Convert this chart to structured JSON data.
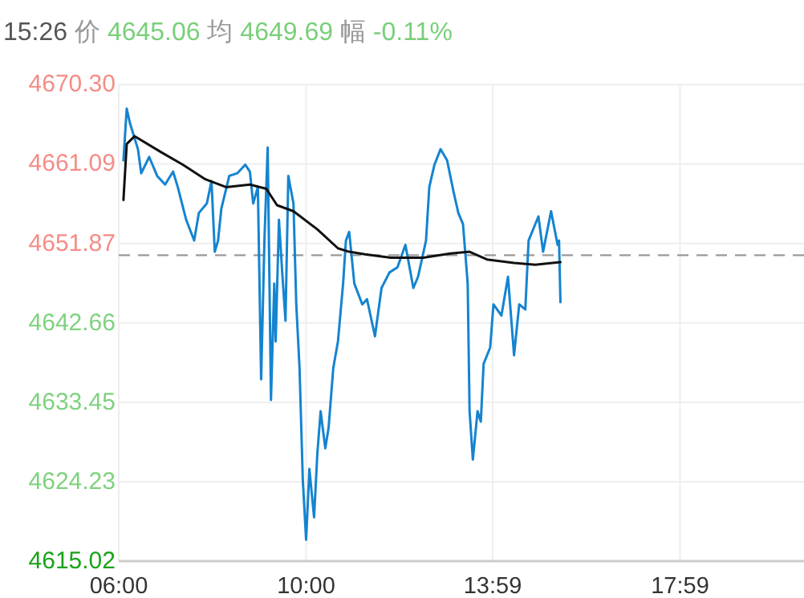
{
  "chart_data": {
    "type": "line",
    "title": "15:26 价 4645.06 均 4649.69 幅 -0.11%",
    "xlim": [
      6,
      20.63
    ],
    "xticks": [
      {
        "value": 6,
        "label": "06:00"
      },
      {
        "value": 10,
        "label": "10:00"
      },
      {
        "value": 13.983,
        "label": "13:59"
      },
      {
        "value": 17.983,
        "label": "17:59"
      }
    ],
    "ylim": [
      4615.02,
      4670.3
    ],
    "yticks": [
      {
        "value": 4670.3,
        "label": "4670.30"
      },
      {
        "value": 4661.09,
        "label": "4661.09"
      },
      {
        "value": 4651.87,
        "label": "4651.87"
      },
      {
        "value": 4642.66,
        "label": "4642.66"
      },
      {
        "value": 4633.45,
        "label": "4633.45"
      },
      {
        "value": 4624.23,
        "label": "4624.23"
      },
      {
        "value": 4615.02,
        "label": "4615.02"
      }
    ],
    "grid": true,
    "ref_lines": [
      {
        "axis": "y",
        "value": 4650.5,
        "color": "#999999",
        "line_style": "dashed"
      }
    ],
    "series": [
      {
        "color": "#1484d0",
        "x": [
          6.1,
          6.17,
          6.24,
          6.41,
          6.48,
          6.65,
          6.82,
          6.99,
          7.16,
          7.26,
          7.44,
          7.61,
          7.71,
          7.88,
          7.98,
          8.05,
          8.12,
          8.19,
          8.36,
          8.53,
          8.7,
          8.8,
          8.87,
          8.97,
          9.04,
          9.11,
          9.18,
          9.25,
          9.32,
          9.35,
          9.42,
          9.49,
          9.56,
          9.62,
          9.73,
          9.79,
          9.86,
          9.93,
          10.0,
          10.07,
          10.17,
          10.24,
          10.31,
          10.41,
          10.48,
          10.58,
          10.68,
          10.79,
          10.85,
          10.92,
          11.03,
          11.2,
          11.3,
          11.47,
          11.61,
          11.78,
          11.95,
          12.12,
          12.29,
          12.39,
          12.56,
          12.63,
          12.74,
          12.87,
          13.01,
          13.15,
          13.25,
          13.35,
          13.45,
          13.49,
          13.56,
          13.66,
          13.73,
          13.79,
          13.93,
          14.0,
          14.17,
          14.31,
          14.44,
          14.55,
          14.68,
          14.75,
          14.96,
          15.06,
          15.23,
          15.37,
          15.4,
          15.43
        ],
        "values": [
          4661.5,
          4667.5,
          4665.8,
          4662.8,
          4660.0,
          4661.9,
          4659.7,
          4658.7,
          4660.2,
          4658.4,
          4654.6,
          4652.2,
          4655.4,
          4656.5,
          4659.1,
          4650.9,
          4652.2,
          4655.9,
          4659.7,
          4660.0,
          4661.0,
          4660.2,
          4656.5,
          4658.4,
          4636.1,
          4652.2,
          4663.0,
          4633.7,
          4647.2,
          4640.5,
          4654.6,
          4648.5,
          4642.9,
          4659.7,
          4656.5,
          4644.8,
          4637.4,
          4624.4,
          4617.5,
          4625.7,
          4620.1,
          4627.5,
          4632.4,
          4628.1,
          4630.5,
          4637.4,
          4640.5,
          4647.2,
          4652.2,
          4653.2,
          4647.2,
          4644.8,
          4645.4,
          4641.1,
          4646.7,
          4648.5,
          4649.1,
          4651.7,
          4646.7,
          4648.0,
          4652.2,
          4658.4,
          4661.0,
          4662.8,
          4661.5,
          4657.8,
          4655.4,
          4654.1,
          4647.2,
          4632.4,
          4626.8,
          4632.4,
          4631.2,
          4637.9,
          4639.8,
          4644.8,
          4643.5,
          4648.0,
          4638.9,
          4644.8,
          4644.2,
          4652.2,
          4655.0,
          4650.9,
          4655.6,
          4651.7,
          4652.2,
          4645.06
        ]
      },
      {
        "color": "#111111",
        "x": [
          6.1,
          6.17,
          6.34,
          6.92,
          7.37,
          7.85,
          8.29,
          8.8,
          9.15,
          9.38,
          9.73,
          10.24,
          10.68,
          10.92,
          11.26,
          11.81,
          12.5,
          13.08,
          13.49,
          13.86,
          14.44,
          14.89,
          15.43
        ],
        "values": [
          4656.9,
          4663.4,
          4664.3,
          4662.4,
          4661.0,
          4659.3,
          4658.4,
          4658.7,
          4658.2,
          4656.3,
          4655.6,
          4653.5,
          4651.3,
          4650.9,
          4650.6,
          4650.2,
          4650.2,
          4650.7,
          4650.9,
          4650.0,
          4649.6,
          4649.4,
          4649.69
        ]
      }
    ]
  }
}
